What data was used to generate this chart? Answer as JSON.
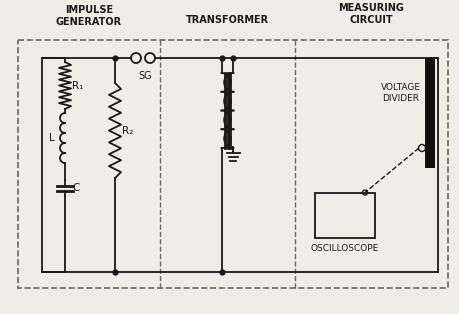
{
  "bg_color": "#f0ede8",
  "line_color": "#1a1a1a",
  "border_color": "#666666",
  "title_impulse": "IMPULSE\nGENERATOR",
  "title_transformer": "TRANSFORMER",
  "title_measuring": "MEASURING\nCIRCUIT",
  "label_R1": "R₁",
  "label_R2": "R₂",
  "label_L": "L",
  "label_C": "C",
  "label_SG": "SG",
  "label_voltage_divider": "VOLTAGE\nDIVIDER",
  "label_oscilloscope": "OSCILLOSCOPE",
  "figsize": [
    4.6,
    3.14
  ],
  "dpi": 100
}
